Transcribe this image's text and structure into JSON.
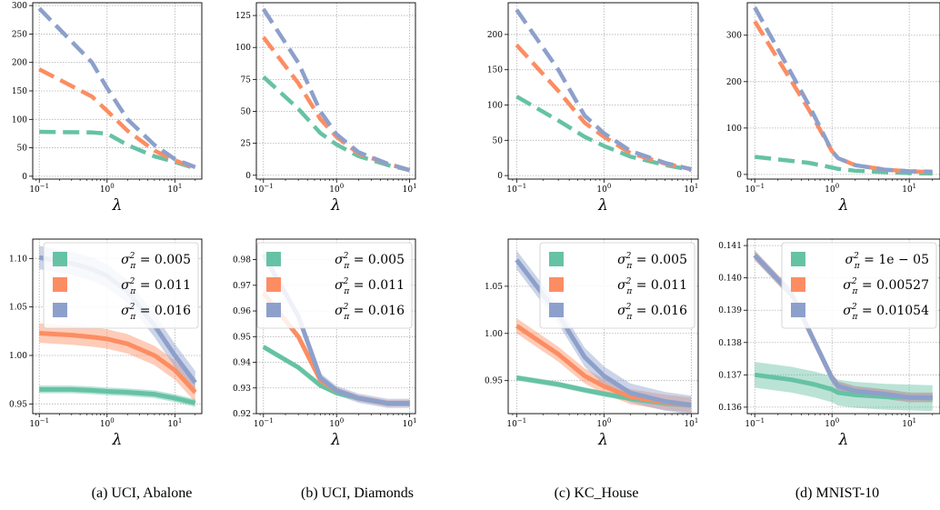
{
  "colors": {
    "green": "#66c2a5",
    "orange": "#fc8d62",
    "blue": "#8da0cb"
  },
  "x_axis_label": "λ",
  "captions": [
    "(a) UCI, Abalone",
    "(b) UCI, Diamonds",
    "(c) KC_House",
    "(d) MNIST-10"
  ],
  "chart_data": [
    {
      "panel": "a-top",
      "type": "line",
      "line_style": "dashed",
      "xscale": "log",
      "xlim": [
        0.08,
        25
      ],
      "ylim": [
        -5,
        305
      ],
      "xticks": [
        "10^-1",
        "10^0",
        "10^1"
      ],
      "yticks": [
        0,
        50,
        100,
        150,
        200,
        250,
        300
      ],
      "grid": true,
      "x": [
        0.1,
        0.6,
        1,
        2,
        5,
        10,
        20
      ],
      "series": [
        {
          "values": [
            78,
            77,
            75,
            55,
            35,
            25,
            14
          ]
        },
        {
          "values": [
            188,
            140,
            115,
            80,
            45,
            28,
            14
          ]
        },
        {
          "values": [
            295,
            200,
            155,
            100,
            55,
            30,
            16
          ]
        }
      ]
    },
    {
      "panel": "b-top",
      "type": "line",
      "line_style": "dashed",
      "xscale": "log",
      "xlim": [
        0.08,
        12
      ],
      "ylim": [
        -3,
        135
      ],
      "xticks": [
        "10^-1",
        "10^0",
        "10^1"
      ],
      "yticks": [
        0,
        25,
        50,
        75,
        100,
        125
      ],
      "grid": true,
      "x": [
        0.1,
        0.3,
        0.6,
        1,
        2,
        5,
        10
      ],
      "series": [
        {
          "values": [
            77,
            52,
            33,
            24,
            15,
            8,
            4
          ]
        },
        {
          "values": [
            108,
            72,
            44,
            30,
            17,
            9,
            4
          ]
        },
        {
          "values": [
            130,
            88,
            50,
            32,
            18,
            9,
            4
          ]
        }
      ]
    },
    {
      "panel": "c-top",
      "type": "line",
      "line_style": "dashed",
      "xscale": "log",
      "xlim": [
        0.08,
        12
      ],
      "ylim": [
        -5,
        245
      ],
      "xticks": [
        "10^-1",
        "10^0",
        "10^1"
      ],
      "yticks": [
        0,
        50,
        100,
        150,
        200
      ],
      "grid": true,
      "x": [
        0.1,
        0.3,
        0.6,
        1,
        2,
        5,
        10
      ],
      "series": [
        {
          "values": [
            112,
            78,
            55,
            42,
            27,
            15,
            8
          ]
        },
        {
          "values": [
            185,
            120,
            75,
            55,
            32,
            17,
            9
          ]
        },
        {
          "values": [
            235,
            150,
            85,
            60,
            35,
            18,
            9
          ]
        }
      ]
    },
    {
      "panel": "d-top",
      "type": "line",
      "line_style": "dashed",
      "xscale": "log",
      "xlim": [
        0.08,
        25
      ],
      "ylim": [
        -10,
        370
      ],
      "xticks": [
        "10^-1",
        "10^0",
        "10^1"
      ],
      "yticks": [
        0,
        100,
        200,
        300
      ],
      "grid": true,
      "x": [
        0.1,
        0.5,
        1,
        1.2,
        2,
        5,
        10,
        20
      ],
      "series": [
        {
          "values": [
            38,
            25,
            15,
            12,
            8,
            5,
            3,
            2
          ]
        },
        {
          "values": [
            330,
            140,
            50,
            35,
            20,
            10,
            7,
            5
          ]
        },
        {
          "values": [
            360,
            150,
            50,
            35,
            20,
            10,
            7,
            6
          ]
        }
      ]
    },
    {
      "panel": "a-bottom",
      "type": "line",
      "uncertainty_band": true,
      "xscale": "log",
      "xlim": [
        0.08,
        25
      ],
      "ylim": [
        0.94,
        1.12
      ],
      "xticks": [
        "10^-1",
        "10^0",
        "10^1"
      ],
      "yticks": [
        "0.95",
        "1.00",
        "1.05",
        "1.10"
      ],
      "grid": true,
      "legend": "upper right",
      "x": [
        0.1,
        0.3,
        0.6,
        1,
        2,
        5,
        10,
        20
      ],
      "series": [
        {
          "name": "σ_π² = 0.005",
          "values": [
            0.965,
            0.965,
            0.964,
            0.963,
            0.962,
            0.96,
            0.956,
            0.951
          ],
          "band": 0.004
        },
        {
          "name": "σ_π² = 0.011",
          "values": [
            1.023,
            1.021,
            1.019,
            1.017,
            1.012,
            1.0,
            0.985,
            0.962
          ],
          "band": 0.01
        },
        {
          "name": "σ_π² = 0.016",
          "values": [
            1.101,
            1.095,
            1.089,
            1.082,
            1.066,
            1.031,
            1.0,
            0.972
          ],
          "band": 0.012
        }
      ]
    },
    {
      "panel": "b-bottom",
      "type": "line",
      "uncertainty_band": true,
      "xscale": "log",
      "xlim": [
        0.08,
        12
      ],
      "ylim": [
        0.92,
        0.988
      ],
      "xticks": [
        "10^-1",
        "10^0",
        "10^1"
      ],
      "yticks": [
        "0.92",
        "0.93",
        "0.94",
        "0.95",
        "0.96",
        "0.97",
        "0.98"
      ],
      "grid": true,
      "legend": "upper right",
      "x": [
        0.1,
        0.3,
        0.6,
        1,
        2,
        5,
        10
      ],
      "series": [
        {
          "name": "σ_π² = 0.005",
          "values": [
            0.946,
            0.938,
            0.931,
            0.928,
            0.926,
            0.924,
            0.924
          ],
          "band": 0.0008
        },
        {
          "name": "σ_π² = 0.011",
          "values": [
            0.967,
            0.95,
            0.933,
            0.929,
            0.926,
            0.924,
            0.924
          ],
          "band": 0.0012
        },
        {
          "name": "σ_π² = 0.016",
          "values": [
            0.982,
            0.958,
            0.934,
            0.929,
            0.926,
            0.924,
            0.924
          ],
          "band": 0.0018
        }
      ]
    },
    {
      "panel": "c-bottom",
      "type": "line",
      "uncertainty_band": true,
      "xscale": "log",
      "xlim": [
        0.08,
        12
      ],
      "ylim": [
        0.915,
        1.1
      ],
      "xticks": [
        "10^-1",
        "10^0",
        "10^1"
      ],
      "yticks": [
        "0.95",
        "1.00",
        "1.05"
      ],
      "grid": true,
      "legend": "upper right",
      "x": [
        0.1,
        0.3,
        0.6,
        1,
        2,
        5,
        10
      ],
      "series": [
        {
          "name": "σ_π² = 0.005",
          "values": [
            0.953,
            0.946,
            0.94,
            0.936,
            0.931,
            0.926,
            0.924
          ],
          "band": 0.003
        },
        {
          "name": "σ_π² = 0.011",
          "values": [
            1.008,
            0.978,
            0.955,
            0.944,
            0.933,
            0.927,
            0.924
          ],
          "band": 0.008
        },
        {
          "name": "σ_π² = 0.016",
          "values": [
            1.078,
            1.02,
            0.975,
            0.955,
            0.937,
            0.928,
            0.924
          ],
          "band": 0.01
        }
      ]
    },
    {
      "panel": "d-bottom",
      "type": "line",
      "uncertainty_band": true,
      "xscale": "log",
      "xlim": [
        0.08,
        25
      ],
      "ylim": [
        0.1358,
        0.1412
      ],
      "xticks": [
        "10^-1",
        "10^0",
        "10^1"
      ],
      "yticks": [
        "0.136",
        "0.137",
        "0.138",
        "0.139",
        "0.140",
        "0.141"
      ],
      "grid": true,
      "legend": "upper right",
      "x": [
        0.1,
        0.3,
        0.6,
        1,
        1.2,
        2,
        5,
        10,
        20
      ],
      "series": [
        {
          "name": "σ_π² = 1e − 05",
          "values": [
            0.137,
            0.13685,
            0.1367,
            0.13655,
            0.13645,
            0.13638,
            0.13632,
            0.1363,
            0.13628
          ],
          "band": 0.0004
        },
        {
          "name": "σ_π² = 0.00527",
          "values": [
            0.1407,
            0.1395,
            0.138,
            0.1369,
            0.13665,
            0.1365,
            0.1364,
            0.1363,
            0.1363
          ],
          "band": 0.00015
        },
        {
          "name": "σ_π² = 0.01054",
          "values": [
            0.1407,
            0.1395,
            0.138,
            0.1369,
            0.13665,
            0.1365,
            0.1364,
            0.1363,
            0.1363
          ],
          "band": 0.00015
        }
      ]
    }
  ]
}
